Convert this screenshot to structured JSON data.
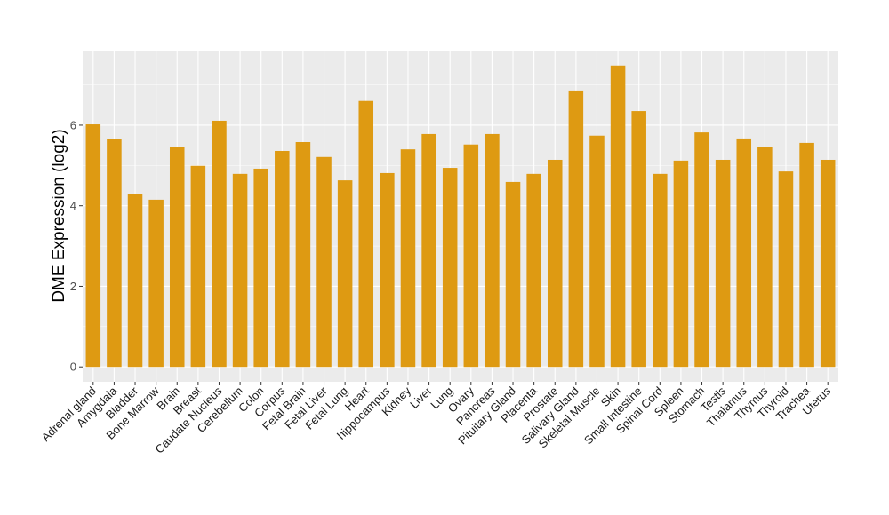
{
  "chart_data": {
    "type": "bar",
    "title": "",
    "xlabel": "",
    "ylabel": "DME Expression (log2)",
    "ylim": [
      -0.37,
      7.85
    ],
    "yticks": [
      0,
      2,
      4,
      6
    ],
    "grid": true,
    "bar_color": "#DE9A12",
    "panel_color": "#EBEBEB",
    "categories": [
      "Adrenal gland",
      "Amygdala",
      "Bladder",
      "Bone Marrow",
      "Brain",
      "Breast",
      "Caudate Nucleus",
      "Cerebellum",
      "Colon",
      "Corpus",
      "Fetal Brain",
      "Fetal Liver",
      "Fetal Lung",
      "Heart",
      "hippocampus",
      "Kidney",
      "Liver",
      "Lung",
      "Ovary",
      "Pancreas",
      "Pituitary Gland",
      "Placenta",
      "Prostate",
      "Salivary Gland",
      "Skeletal Muscle",
      "Skin",
      "Small Intestine",
      "Spinal Cord",
      "Spleen",
      "Stomach",
      "Testis",
      "Thalamus",
      "Thymus",
      "Thyroid",
      "Trachea",
      "Uterus"
    ],
    "values": [
      6.02,
      5.65,
      4.28,
      4.15,
      5.45,
      4.99,
      6.11,
      4.79,
      4.92,
      5.36,
      5.58,
      5.21,
      4.63,
      6.6,
      4.81,
      5.4,
      5.78,
      4.94,
      5.52,
      5.78,
      4.59,
      4.79,
      5.14,
      6.86,
      5.74,
      7.48,
      6.35,
      4.79,
      5.12,
      5.82,
      5.14,
      5.67,
      5.45,
      4.85,
      5.56,
      5.14
    ]
  }
}
